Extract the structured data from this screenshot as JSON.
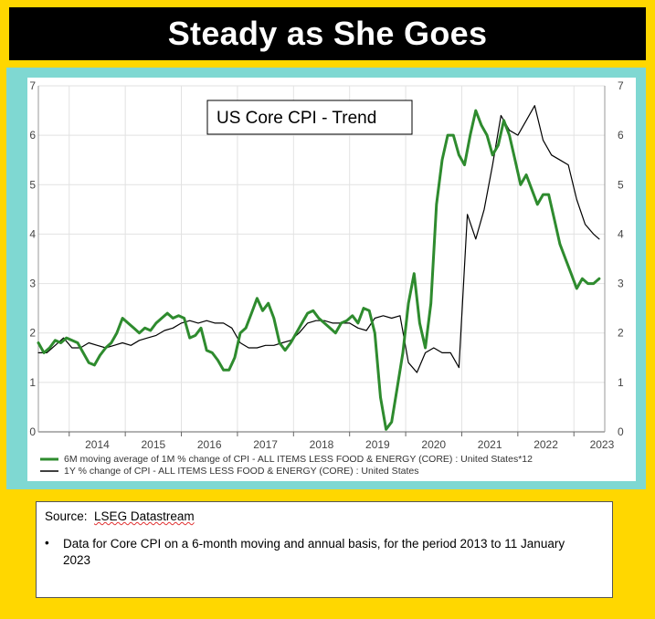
{
  "header": {
    "title": "Steady as She Goes"
  },
  "chart_data": {
    "type": "line",
    "title": "US Core CPI - Trend",
    "xlabel": "",
    "ylabel": "",
    "xlim": [
      2013.45,
      2023.55
    ],
    "ylim": [
      0,
      7
    ],
    "y_ticks": [
      "0",
      "1",
      "2",
      "3",
      "4",
      "5",
      "6",
      "7"
    ],
    "x_ticks": [
      "2014",
      "2015",
      "2016",
      "2017",
      "2018",
      "2019",
      "2020",
      "2021",
      "2022",
      "2023"
    ],
    "legend": [
      "6M moving average of 1M % change of CPI - ALL ITEMS LESS FOOD & ENERGY (CORE) : United States*12",
      "1Y % change of CPI - ALL ITEMS LESS FOOD & ENERGY (CORE) : United States"
    ],
    "series": [
      {
        "name": "6M moving average of 1M % change of CPI - ALL ITEMS LESS FOOD & ENERGY (CORE) : United States*12",
        "color": "#2E8B2E",
        "x": [
          2013.45,
          2013.55,
          2013.65,
          2013.75,
          2013.85,
          2013.95,
          2014.05,
          2014.15,
          2014.25,
          2014.35,
          2014.45,
          2014.55,
          2014.65,
          2014.75,
          2014.85,
          2014.95,
          2015.05,
          2015.15,
          2015.25,
          2015.35,
          2015.45,
          2015.55,
          2015.65,
          2015.75,
          2015.85,
          2015.95,
          2016.05,
          2016.15,
          2016.25,
          2016.35,
          2016.45,
          2016.55,
          2016.65,
          2016.75,
          2016.85,
          2016.95,
          2017.05,
          2017.15,
          2017.25,
          2017.35,
          2017.45,
          2017.55,
          2017.65,
          2017.75,
          2017.85,
          2017.95,
          2018.05,
          2018.15,
          2018.25,
          2018.35,
          2018.45,
          2018.55,
          2018.65,
          2018.75,
          2018.85,
          2018.95,
          2019.05,
          2019.15,
          2019.25,
          2019.35,
          2019.45,
          2019.55,
          2019.65,
          2019.75,
          2019.85,
          2019.95,
          2020.05,
          2020.15,
          2020.25,
          2020.35,
          2020.45,
          2020.55,
          2020.65,
          2020.75,
          2020.85,
          2020.95,
          2021.05,
          2021.15,
          2021.25,
          2021.35,
          2021.45,
          2021.55,
          2021.65,
          2021.75,
          2021.85,
          2021.95,
          2022.05,
          2022.15,
          2022.25,
          2022.35,
          2022.45,
          2022.55,
          2022.65,
          2022.75,
          2022.85,
          2022.95,
          2023.05,
          2023.15,
          2023.25,
          2023.35,
          2023.45
        ],
        "values": [
          1.8,
          1.6,
          1.7,
          1.85,
          1.8,
          1.9,
          1.85,
          1.8,
          1.6,
          1.4,
          1.35,
          1.55,
          1.7,
          1.8,
          2.0,
          2.3,
          2.2,
          2.1,
          2.0,
          2.1,
          2.05,
          2.2,
          2.3,
          2.4,
          2.3,
          2.35,
          2.3,
          1.9,
          1.95,
          2.1,
          1.65,
          1.6,
          1.45,
          1.25,
          1.25,
          1.5,
          2.0,
          2.1,
          2.4,
          2.7,
          2.45,
          2.6,
          2.3,
          1.8,
          1.65,
          1.8,
          2.0,
          2.2,
          2.4,
          2.45,
          2.3,
          2.2,
          2.1,
          2.0,
          2.2,
          2.25,
          2.35,
          2.2,
          2.5,
          2.45,
          2.0,
          0.7,
          0.05,
          0.2,
          0.9,
          1.6,
          2.6,
          3.2,
          2.2,
          1.7,
          2.6,
          4.6,
          5.5,
          6.0,
          6.0,
          5.6,
          5.4,
          6.0,
          6.5,
          6.2,
          6.0,
          5.6,
          5.8,
          6.3,
          6.0,
          5.5,
          5.0,
          5.2,
          4.9,
          4.6,
          4.8,
          4.8,
          4.3,
          3.8,
          3.5,
          3.2,
          2.9,
          3.1,
          3.0,
          3.0,
          3.1
        ],
        "values_note": "monthly-ish samples read from the green line"
      },
      {
        "name": "1Y % change of CPI - ALL ITEMS LESS FOOD & ENERGY (CORE) : United States",
        "color": "#000000",
        "x": [
          2013.45,
          2013.6,
          2013.75,
          2013.9,
          2014.05,
          2014.2,
          2014.35,
          2014.5,
          2014.65,
          2014.8,
          2014.95,
          2015.1,
          2015.25,
          2015.4,
          2015.55,
          2015.7,
          2015.85,
          2016.0,
          2016.15,
          2016.3,
          2016.45,
          2016.6,
          2016.75,
          2016.9,
          2017.05,
          2017.2,
          2017.35,
          2017.5,
          2017.65,
          2017.8,
          2017.95,
          2018.1,
          2018.25,
          2018.4,
          2018.55,
          2018.7,
          2018.85,
          2019.0,
          2019.15,
          2019.3,
          2019.45,
          2019.6,
          2019.75,
          2019.9,
          2020.05,
          2020.2,
          2020.35,
          2020.5,
          2020.65,
          2020.8,
          2020.95,
          2021.1,
          2021.25,
          2021.4,
          2021.55,
          2021.7,
          2021.85,
          2022.0,
          2022.15,
          2022.3,
          2022.45,
          2022.6,
          2022.75,
          2022.9,
          2023.05,
          2023.2,
          2023.35,
          2023.45
        ],
        "values": [
          1.6,
          1.6,
          1.75,
          1.9,
          1.7,
          1.7,
          1.8,
          1.75,
          1.7,
          1.75,
          1.8,
          1.75,
          1.85,
          1.9,
          1.95,
          2.05,
          2.1,
          2.2,
          2.25,
          2.2,
          2.25,
          2.2,
          2.2,
          2.1,
          1.8,
          1.7,
          1.7,
          1.75,
          1.75,
          1.8,
          1.85,
          2.0,
          2.2,
          2.25,
          2.25,
          2.2,
          2.2,
          2.2,
          2.1,
          2.05,
          2.3,
          2.35,
          2.3,
          2.35,
          1.4,
          1.2,
          1.6,
          1.7,
          1.6,
          1.6,
          1.3,
          4.4,
          3.9,
          4.5,
          5.4,
          6.4,
          6.1,
          6.0,
          6.3,
          6.6,
          5.9,
          5.6,
          5.5,
          5.4,
          4.7,
          4.2,
          4.0,
          3.9
        ],
        "values_note": "monthly-ish samples read from the black line"
      }
    ]
  },
  "source_box": {
    "source_label": "Source:",
    "source_name": "LSEG Datastream",
    "bullet_symbol": "•",
    "bullet_text": "Data for Core CPI on a 6-month moving and annual basis, for the period 2013 to 11 January 2023"
  }
}
